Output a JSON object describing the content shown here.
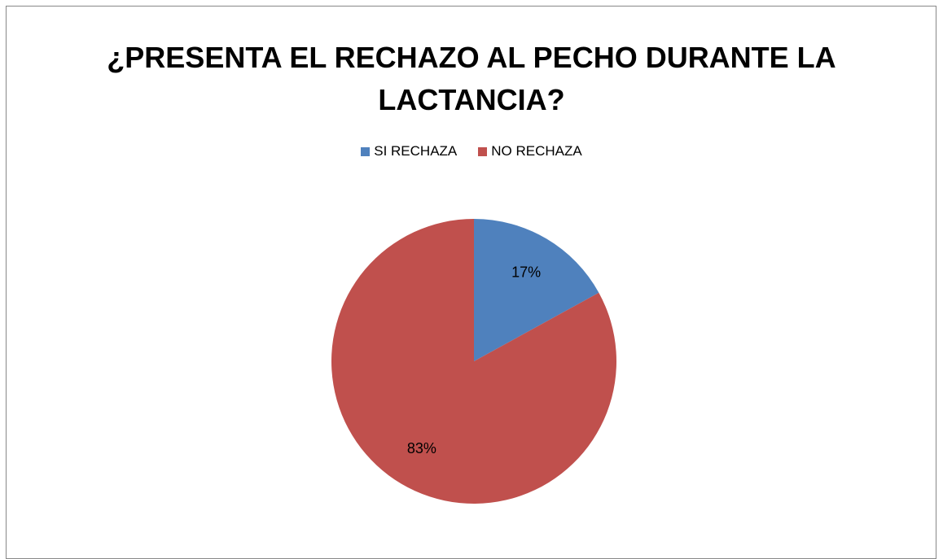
{
  "chart_data": {
    "type": "pie",
    "title": "¿PRESENTA EL RECHAZO AL PECHO DURANTE LA LACTANCIA?",
    "categories": [
      "SI RECHAZA",
      "NO RECHAZA"
    ],
    "values": [
      17,
      83
    ],
    "value_labels": [
      "17%",
      "83%"
    ],
    "colors": [
      "#4f81bd",
      "#c0504d"
    ],
    "legend": "top"
  }
}
